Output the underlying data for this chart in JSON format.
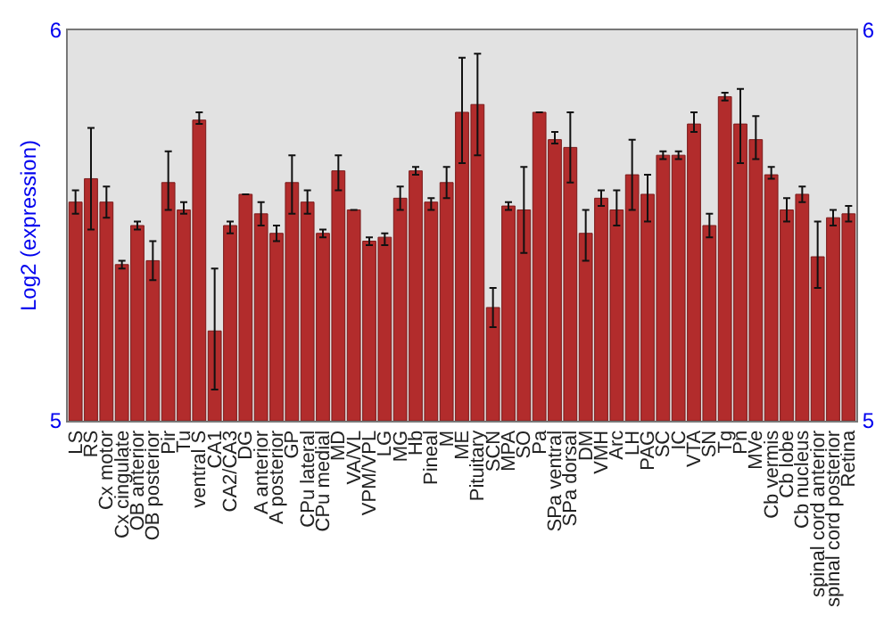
{
  "chart_data": {
    "type": "bar",
    "ylabel": "Log2 (expression)",
    "categories": [
      "LS",
      "RS",
      "Cx motor",
      "Cx cingulate",
      "OB anterior",
      "OB posterior",
      "Pir",
      "Tu",
      "ventral S",
      "CA1",
      "CA2/CA3",
      "DG",
      "A anterior",
      "A posterior",
      "GP",
      "CPu lateral",
      "CPu medial",
      "MD",
      "VA/VL",
      "VPM/VPL",
      "LG",
      "MG",
      "Hb",
      "Pineal",
      "M",
      "ME",
      "Pituitary",
      "SCN",
      "MPA",
      "SO",
      "Pa",
      "SPa ventral",
      "SPa dorsal",
      "DM",
      "VMH",
      "Arc",
      "LH",
      "PAG",
      "SC",
      "IC",
      "VTA",
      "SN",
      "Tg",
      "Pn",
      "MVe",
      "Cb vermis",
      "Cb lobe",
      "Cb nucleus",
      "spinal cord anterior",
      "spinal cord posterior",
      "Retina"
    ],
    "values": [
      5.56,
      5.62,
      5.56,
      5.4,
      5.5,
      5.41,
      5.61,
      5.54,
      5.77,
      5.23,
      5.5,
      5.58,
      5.53,
      5.48,
      5.61,
      5.56,
      5.48,
      5.64,
      5.54,
      5.46,
      5.47,
      5.57,
      5.64,
      5.56,
      5.61,
      5.79,
      5.81,
      5.29,
      5.55,
      5.54,
      5.79,
      5.72,
      5.7,
      5.48,
      5.57,
      5.54,
      5.63,
      5.58,
      5.68,
      5.68,
      5.76,
      5.5,
      5.83,
      5.76,
      5.72,
      5.63,
      5.54,
      5.58,
      5.42,
      5.52,
      5.53
    ],
    "errors": [
      [
        5.53,
        5.59
      ],
      [
        5.49,
        5.75
      ],
      [
        5.52,
        5.6
      ],
      [
        5.39,
        5.41
      ],
      [
        5.49,
        5.51
      ],
      [
        5.36,
        5.46
      ],
      [
        5.54,
        5.69
      ],
      [
        5.53,
        5.56
      ],
      [
        5.76,
        5.79
      ],
      [
        5.08,
        5.39
      ],
      [
        5.48,
        5.51
      ],
      null,
      [
        5.5,
        5.56
      ],
      [
        5.46,
        5.5
      ],
      [
        5.53,
        5.68
      ],
      [
        5.53,
        5.59
      ],
      [
        5.47,
        5.49
      ],
      [
        5.59,
        5.68
      ],
      null,
      [
        5.45,
        5.47
      ],
      [
        5.45,
        5.48
      ],
      [
        5.54,
        5.6
      ],
      [
        5.63,
        5.65
      ],
      [
        5.54,
        5.57
      ],
      [
        5.57,
        5.65
      ],
      [
        5.66,
        5.93
      ],
      [
        5.68,
        5.94
      ],
      [
        5.24,
        5.34
      ],
      [
        5.54,
        5.56
      ],
      [
        5.43,
        5.65
      ],
      null,
      [
        5.71,
        5.74
      ],
      [
        5.61,
        5.79
      ],
      [
        5.41,
        5.54
      ],
      [
        5.55,
        5.59
      ],
      [
        5.5,
        5.59
      ],
      [
        5.54,
        5.72
      ],
      [
        5.51,
        5.63
      ],
      [
        5.67,
        5.69
      ],
      [
        5.67,
        5.69
      ],
      [
        5.74,
        5.79
      ],
      [
        5.47,
        5.53
      ],
      [
        5.82,
        5.84
      ],
      [
        5.66,
        5.85
      ],
      [
        5.67,
        5.78
      ],
      [
        5.62,
        5.65
      ],
      [
        5.51,
        5.57
      ],
      [
        5.56,
        5.6
      ],
      [
        5.34,
        5.51
      ],
      [
        5.5,
        5.54
      ],
      [
        5.51,
        5.55
      ]
    ],
    "color": "#b22c2c",
    "ylim": [
      5,
      6
    ],
    "yticks": [
      5,
      6
    ],
    "y2lim": [
      5,
      6
    ],
    "y2ticks": [
      5,
      6
    ],
    "grid": false
  }
}
